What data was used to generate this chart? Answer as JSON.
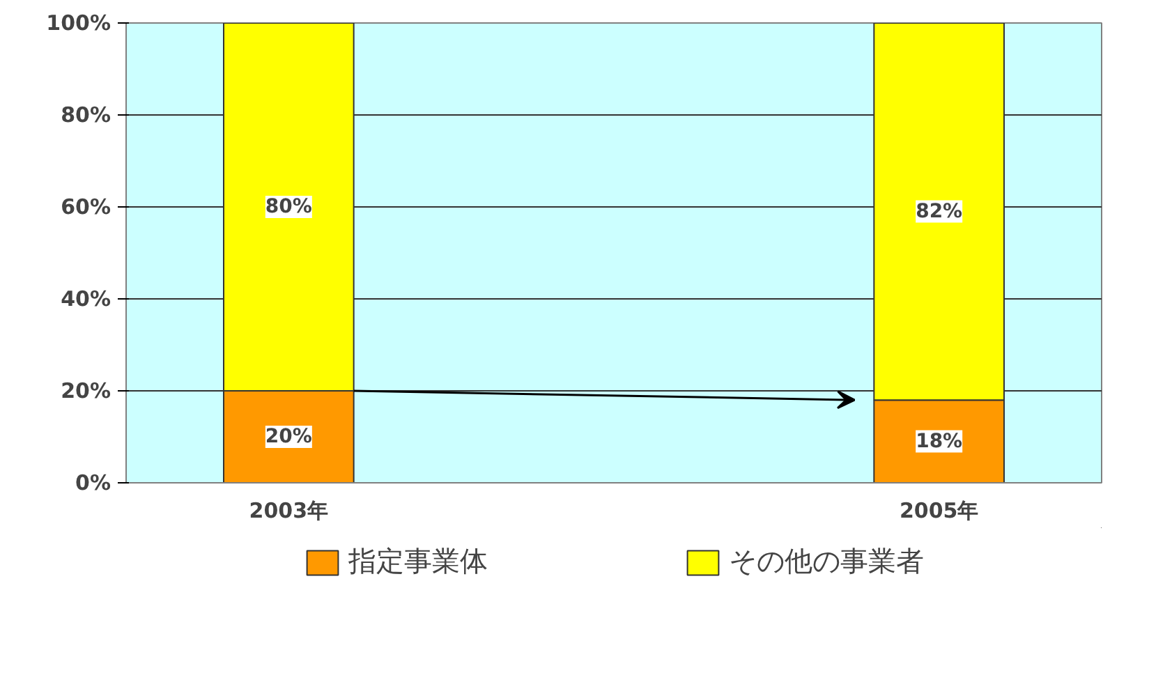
{
  "chart_data": {
    "type": "bar",
    "stacked": true,
    "categories": [
      "2003年",
      "2005年"
    ],
    "series": [
      {
        "name": "指定事業体",
        "color": "#ff9900",
        "values": [
          20,
          18
        ],
        "value_labels": [
          "20%",
          "18%"
        ]
      },
      {
        "name": "その他の事業者",
        "color": "#ffff00",
        "values": [
          80,
          82
        ],
        "value_labels": [
          "80%",
          "82%"
        ]
      }
    ],
    "ylim": [
      0,
      100
    ],
    "yticks": [
      {
        "value": 0,
        "label": "0%"
      },
      {
        "value": 20,
        "label": "20%"
      },
      {
        "value": 40,
        "label": "40%"
      },
      {
        "value": 60,
        "label": "60%"
      },
      {
        "value": 80,
        "label": "80%"
      },
      {
        "value": 100,
        "label": "100%"
      }
    ],
    "grid": "y",
    "legend": "bottom"
  }
}
